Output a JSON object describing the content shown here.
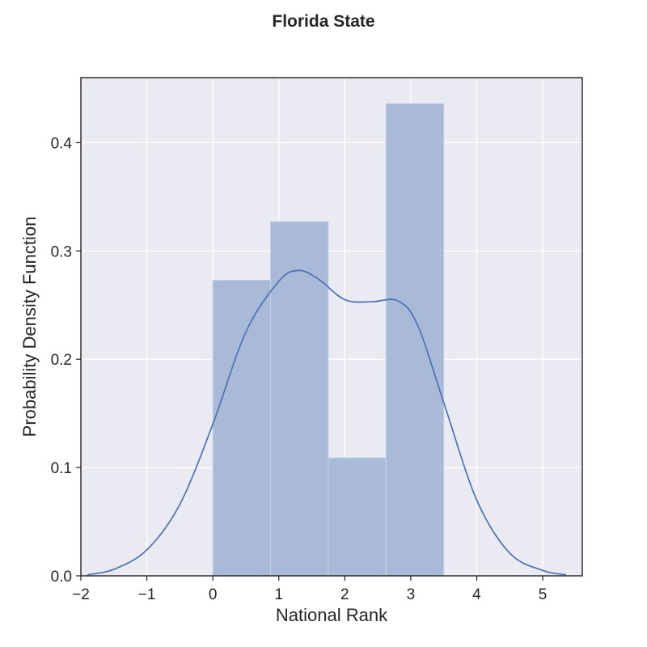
{
  "chart_data": {
    "type": "histogram",
    "title": "Florida State",
    "xlabel": "National Rank",
    "ylabel": "Probability Density Function",
    "xlim": [
      -2.0,
      5.6
    ],
    "ylim": [
      0,
      0.46
    ],
    "xticks": [
      -2,
      -1,
      0,
      1,
      2,
      3,
      4,
      5
    ],
    "xtick_labels": [
      "−2",
      "−1",
      "0",
      "1",
      "2",
      "3",
      "4",
      "5"
    ],
    "yticks": [
      0.0,
      0.1,
      0.2,
      0.3,
      0.4
    ],
    "ytick_labels": [
      "0.0",
      "0.1",
      "0.2",
      "0.3",
      "0.4"
    ],
    "grid": true,
    "bins": [
      {
        "x0": 0.0,
        "x1": 0.875,
        "value": 0.273
      },
      {
        "x0": 0.875,
        "x1": 1.75,
        "value": 0.327
      },
      {
        "x0": 1.75,
        "x1": 2.625,
        "value": 0.109
      },
      {
        "x0": 2.625,
        "x1": 3.5,
        "value": 0.436
      }
    ],
    "kde": {
      "x": [
        -1.9,
        -1.5,
        -1.0,
        -0.5,
        0.0,
        0.5,
        1.0,
        1.3,
        1.6,
        2.0,
        2.4,
        2.8,
        3.1,
        3.5,
        4.0,
        4.5,
        5.0,
        5.35
      ],
      "y": [
        0.001,
        0.006,
        0.024,
        0.066,
        0.14,
        0.225,
        0.272,
        0.282,
        0.274,
        0.255,
        0.253,
        0.254,
        0.232,
        0.16,
        0.07,
        0.021,
        0.005,
        0.001
      ]
    },
    "colors": {
      "background": "#eaeaf2",
      "grid": "#ffffff",
      "bar_fill": "#a9b9d8",
      "bar_edge": "#c6d1e6",
      "kde_line": "#4c72b0",
      "frame": "#1f1f1f",
      "text": "#262626"
    }
  }
}
